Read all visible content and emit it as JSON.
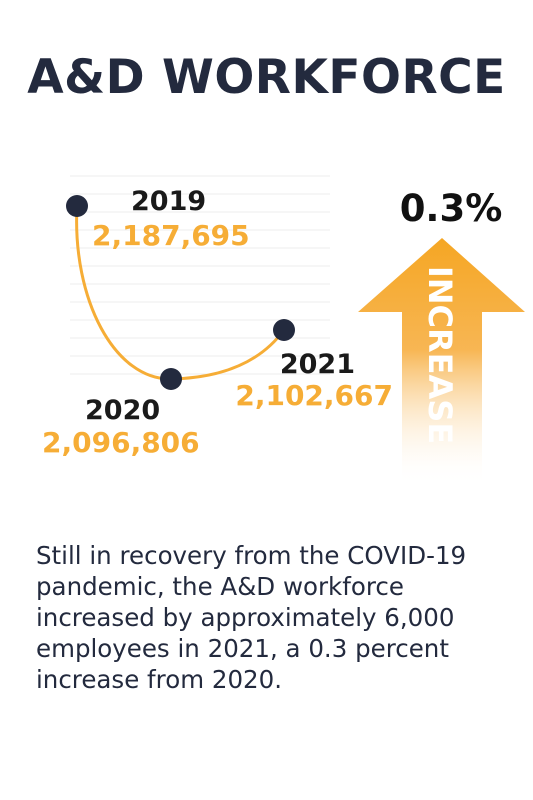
{
  "title": "A&D WORKFORCE",
  "increase": {
    "percent_label": "0.3%",
    "word": "INCREASE"
  },
  "description": "Still in recovery from the COVID-19 pandemic, the A&D workforce increased by approximately 6,000 employees in 2021, a 0.3 percent increase from 2020.",
  "colors": {
    "navy": "#232a3e",
    "orange": "#f6ad36",
    "arrow_top": "#f5a623"
  },
  "chart_data": {
    "type": "line",
    "x": [
      "2019",
      "2020",
      "2021"
    ],
    "values": [
      2187695,
      2096806,
      2102667
    ],
    "value_labels": [
      "2,187,695",
      "2,096,806",
      "2,102,667"
    ],
    "title": "",
    "xlabel": "",
    "ylabel": "",
    "grid": true
  }
}
